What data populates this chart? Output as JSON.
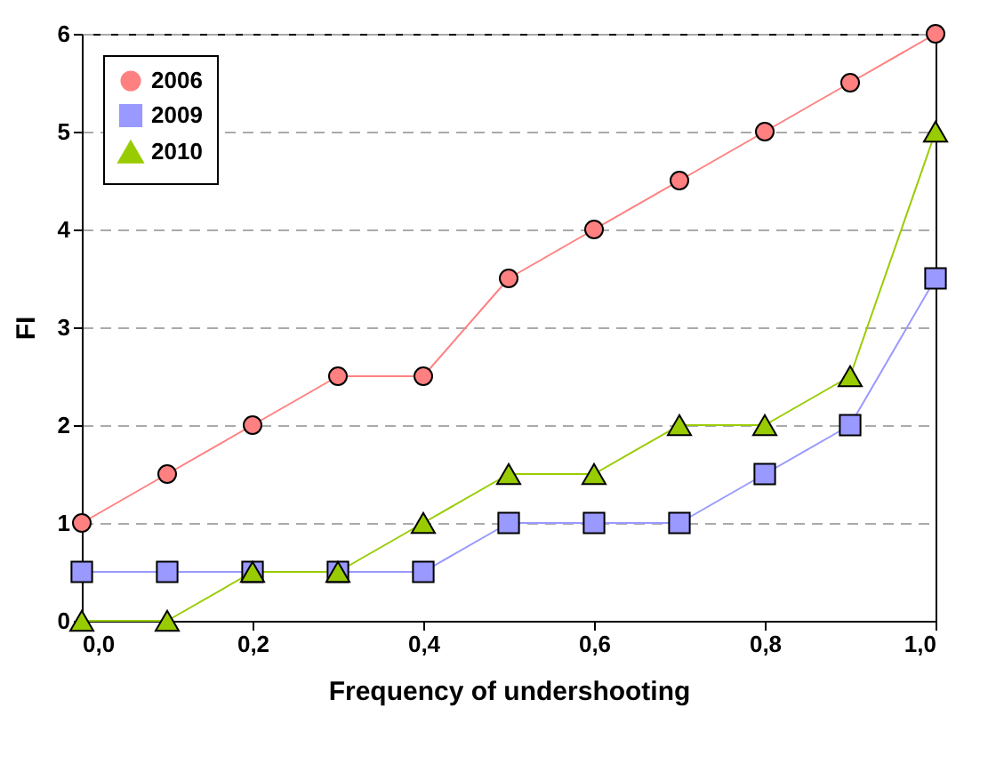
{
  "chart_data": {
    "type": "line",
    "xlabel": "Frequency of undershooting",
    "ylabel": "FI",
    "x": [
      0,
      0.1,
      0.2,
      0.3,
      0.4,
      0.5,
      0.6,
      0.7,
      0.8,
      0.9,
      1
    ],
    "series": [
      {
        "name": "2006",
        "color": "#ff8080",
        "marker": "circle",
        "values": [
          1,
          1.5,
          2,
          2.5,
          2.5,
          3.5,
          4,
          4.5,
          5,
          5.5,
          6
        ]
      },
      {
        "name": "2009",
        "color": "#9999ff",
        "marker": "square",
        "values": [
          0.5,
          0.5,
          0.5,
          0.5,
          0.5,
          1,
          1,
          1,
          1.5,
          2,
          3.5
        ]
      },
      {
        "name": "2010",
        "color": "#99cc00",
        "marker": "triangle",
        "values": [
          0,
          0,
          0.5,
          0.5,
          1,
          1.5,
          1.5,
          2,
          2,
          2.5,
          5
        ]
      }
    ],
    "xlim": [
      0,
      1
    ],
    "ylim": [
      0,
      6
    ],
    "xticks": [
      {
        "value": 0,
        "label": "0,0"
      },
      {
        "value": 0.2,
        "label": "0,2"
      },
      {
        "value": 0.4,
        "label": "0,4"
      },
      {
        "value": 0.6,
        "label": "0,6"
      },
      {
        "value": 0.8,
        "label": "0,8"
      },
      {
        "value": 1,
        "label": "1,0"
      }
    ],
    "yticks": [
      0,
      1,
      2,
      3,
      4,
      5,
      6
    ],
    "grid": "y",
    "legend": "top left",
    "line_style": "solid"
  }
}
